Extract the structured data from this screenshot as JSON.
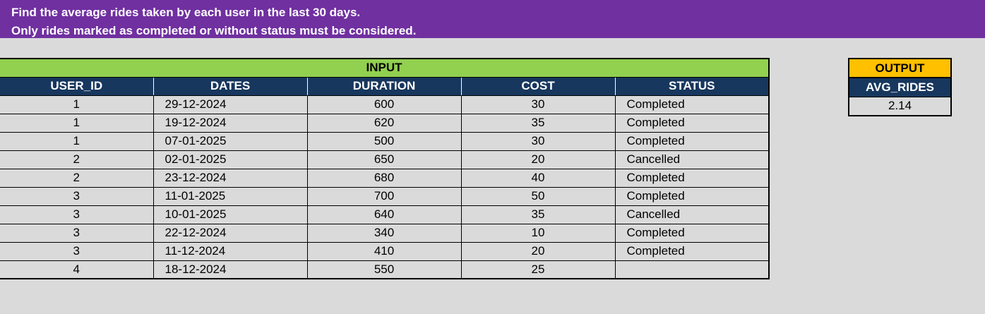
{
  "banner": {
    "line1": "Find the average rides taken by each user in the last 30 days.",
    "line2": "Only rides marked as completed or without status must be considered."
  },
  "input": {
    "title": "INPUT",
    "columns": [
      "USER_ID",
      "DATES",
      "DURATION",
      "COST",
      "STATUS"
    ],
    "rows": [
      [
        "1",
        "29-12-2024",
        "600",
        "30",
        "Completed"
      ],
      [
        "1",
        "19-12-2024",
        "620",
        "35",
        "Completed"
      ],
      [
        "1",
        "07-01-2025",
        "500",
        "30",
        "Completed"
      ],
      [
        "2",
        "02-01-2025",
        "650",
        "20",
        "Cancelled"
      ],
      [
        "2",
        "23-12-2024",
        "680",
        "40",
        "Completed"
      ],
      [
        "3",
        "11-01-2025",
        "700",
        "50",
        "Completed"
      ],
      [
        "3",
        "10-01-2025",
        "640",
        "35",
        "Cancelled"
      ],
      [
        "3",
        "22-12-2024",
        "340",
        "10",
        "Completed"
      ],
      [
        "3",
        "11-12-2024",
        "410",
        "20",
        "Completed"
      ],
      [
        "4",
        "18-12-2024",
        "550",
        "25",
        ""
      ]
    ]
  },
  "output": {
    "title": "OUTPUT",
    "column": "AVG_RIDES",
    "value": "2.14"
  },
  "colors": {
    "banner": "#7030a0",
    "input_header": "#92d050",
    "column_header": "#17375e",
    "output_header": "#ffc000"
  }
}
